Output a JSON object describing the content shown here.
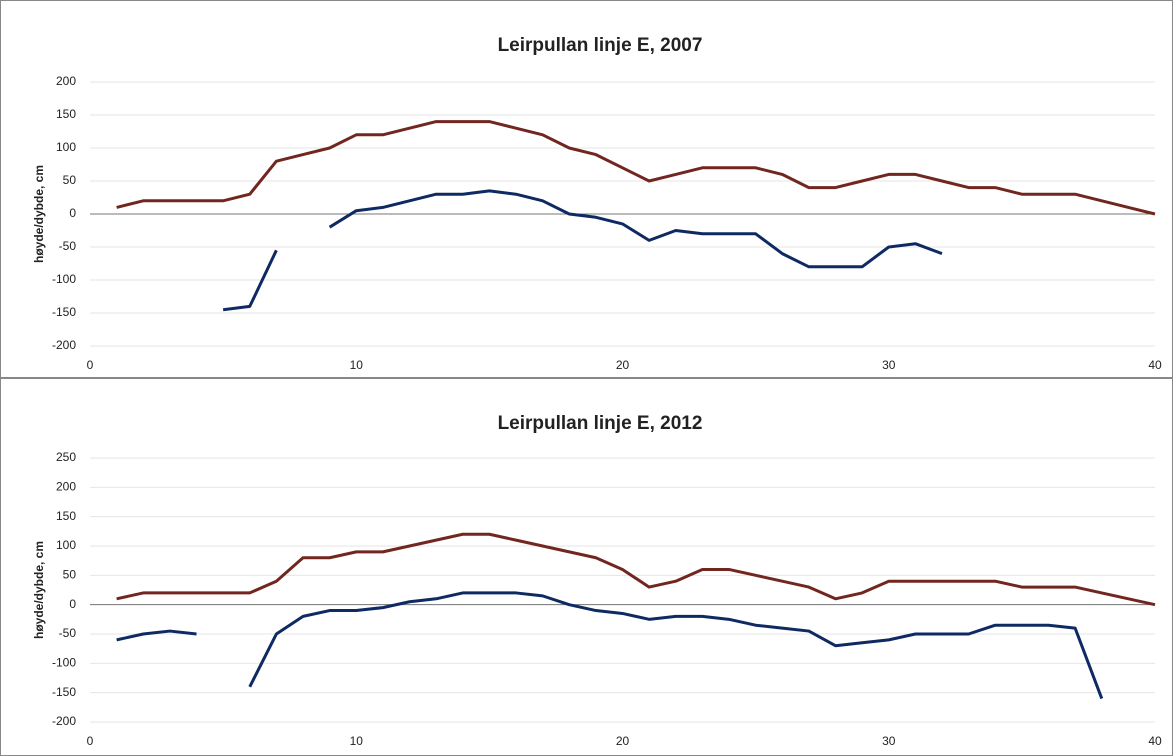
{
  "chart_data": [
    {
      "type": "line",
      "title": "Leirpullan linje E, 2007",
      "y_label": "høyde/dybde, cm",
      "x": [
        1,
        2,
        3,
        4,
        5,
        6,
        7,
        8,
        9,
        10,
        11,
        12,
        13,
        14,
        15,
        16,
        17,
        18,
        19,
        20,
        21,
        22,
        23,
        24,
        25,
        26,
        27,
        28,
        29,
        30,
        31,
        32,
        33,
        34,
        35,
        36,
        37,
        38,
        39,
        40
      ],
      "xlim": [
        0,
        40
      ],
      "xticks": [
        0,
        10,
        20,
        30,
        40
      ],
      "ylim": [
        -200,
        200
      ],
      "yticks": [
        -200,
        -150,
        -100,
        -50,
        0,
        50,
        100,
        150,
        200
      ],
      "grid": true,
      "series": [
        {
          "color": "#722620",
          "values": [
            10,
            20,
            20,
            20,
            20,
            30,
            80,
            90,
            100,
            120,
            120,
            130,
            140,
            140,
            140,
            130,
            120,
            100,
            90,
            70,
            50,
            60,
            70,
            70,
            70,
            60,
            40,
            40,
            50,
            60,
            60,
            50,
            40,
            40,
            30,
            30,
            30,
            20,
            10,
            0
          ]
        },
        {
          "color": "#0f2a63",
          "values": [
            null,
            null,
            null,
            null,
            -145,
            -140,
            -55,
            null,
            -20,
            5,
            10,
            20,
            30,
            30,
            35,
            30,
            20,
            0,
            -5,
            -15,
            -40,
            -25,
            -30,
            -30,
            -30,
            -60,
            -80,
            -80,
            -80,
            -50,
            -45,
            -60,
            null,
            null,
            null,
            null,
            null,
            null,
            null,
            null
          ]
        }
      ]
    },
    {
      "type": "line",
      "title": "Leirpullan linje E, 2012",
      "y_label": "høyde/dybde, cm",
      "x": [
        1,
        2,
        3,
        4,
        5,
        6,
        7,
        8,
        9,
        10,
        11,
        12,
        13,
        14,
        15,
        16,
        17,
        18,
        19,
        20,
        21,
        22,
        23,
        24,
        25,
        26,
        27,
        28,
        29,
        30,
        31,
        32,
        33,
        34,
        35,
        36,
        37,
        38,
        39,
        40
      ],
      "xlim": [
        0,
        40
      ],
      "xticks": [
        0,
        10,
        20,
        30,
        40
      ],
      "ylim": [
        -200,
        250
      ],
      "yticks": [
        -200,
        -150,
        -100,
        -50,
        0,
        50,
        100,
        150,
        200,
        250
      ],
      "grid": true,
      "series": [
        {
          "color": "#722620",
          "values": [
            10,
            20,
            20,
            20,
            20,
            20,
            40,
            80,
            80,
            90,
            90,
            100,
            110,
            120,
            120,
            110,
            100,
            90,
            80,
            60,
            30,
            40,
            60,
            60,
            50,
            40,
            30,
            10,
            20,
            40,
            40,
            40,
            40,
            40,
            30,
            30,
            30,
            20,
            10,
            0
          ]
        },
        {
          "color": "#0f2a63",
          "values": [
            -60,
            -50,
            -45,
            -50,
            null,
            -140,
            -50,
            -20,
            -10,
            -10,
            -5,
            5,
            10,
            20,
            20,
            20,
            15,
            0,
            -10,
            -15,
            -25,
            -20,
            -20,
            -25,
            -35,
            -40,
            -45,
            -70,
            -65,
            -60,
            -50,
            -50,
            -50,
            -35,
            -35,
            -35,
            -40,
            -160,
            null,
            null
          ]
        }
      ]
    }
  ]
}
